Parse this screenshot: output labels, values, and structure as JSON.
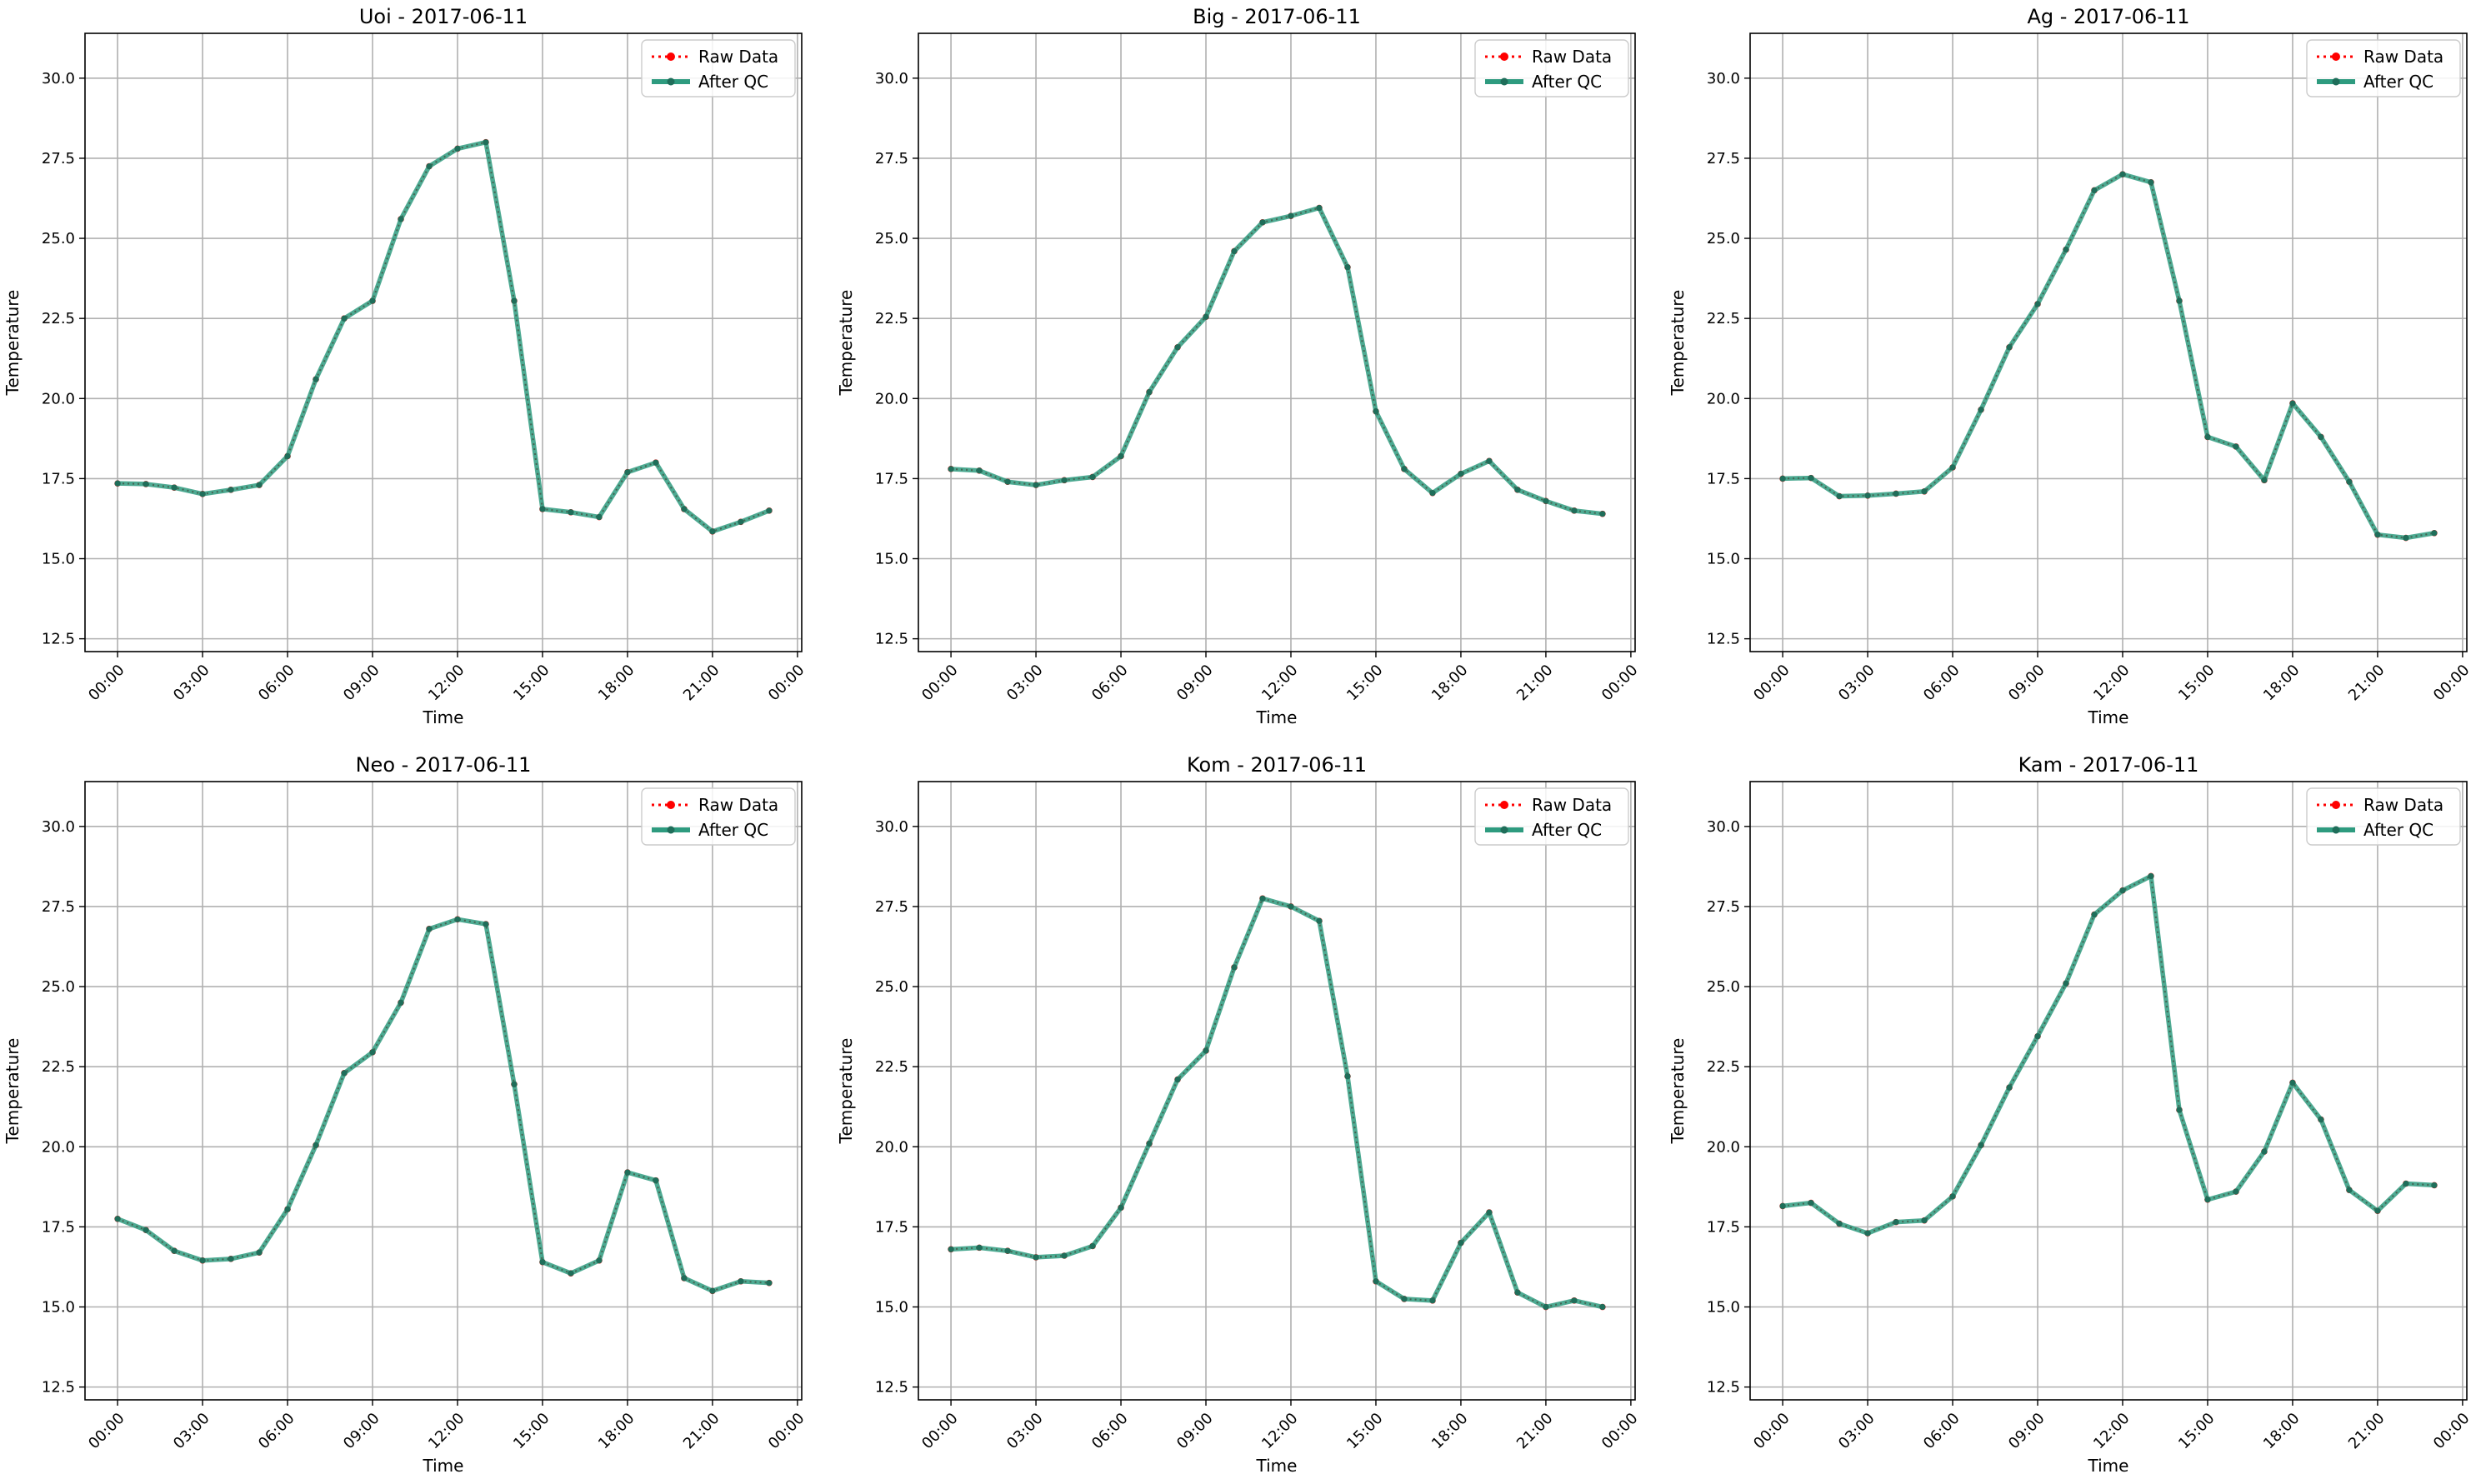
{
  "figure": {
    "legend_placement": "upper right",
    "grid": true,
    "colors": {
      "raw": "#ff0000",
      "after_qc": "#2e9b7f",
      "after_qc_marker": "#1f6e5a",
      "grid": "#b0b0b0"
    }
  },
  "chart_data": [
    {
      "type": "line",
      "title": "Uoi - 2017-06-11",
      "xlabel": "Time",
      "ylabel": "Temperature",
      "xlim": [
        -1.15,
        24.15
      ],
      "ylim": [
        12.1,
        31.4
      ],
      "xticks": [
        0,
        3,
        6,
        9,
        12,
        15,
        18,
        21,
        24
      ],
      "xtick_labels": [
        "00:00",
        "03:00",
        "06:00",
        "09:00",
        "12:00",
        "15:00",
        "18:00",
        "21:00",
        "00:00"
      ],
      "yticks": [
        12.5,
        15.0,
        17.5,
        20.0,
        22.5,
        25.0,
        27.5,
        30.0
      ],
      "ytick_labels": [
        "12.5",
        "15.0",
        "17.5",
        "20.0",
        "22.5",
        "25.0",
        "27.5",
        "30.0"
      ],
      "x": [
        0,
        1,
        2,
        3,
        4,
        5,
        6,
        7,
        8,
        9,
        10,
        11,
        12,
        13,
        14,
        15,
        16,
        17,
        18,
        19,
        20,
        21,
        22,
        23
      ],
      "series": [
        {
          "name": "Raw Data",
          "values": [
            17.35,
            17.33,
            17.22,
            17.02,
            17.15,
            17.3,
            18.2,
            20.6,
            22.5,
            23.05,
            25.6,
            27.25,
            27.8,
            28.0,
            23.05,
            16.55,
            16.45,
            16.3,
            17.7,
            18.0,
            16.55,
            15.85,
            16.15,
            16.5
          ]
        },
        {
          "name": "After QC",
          "values": [
            17.35,
            17.33,
            17.22,
            17.02,
            17.15,
            17.3,
            18.2,
            20.6,
            22.5,
            23.05,
            25.6,
            27.25,
            27.8,
            28.0,
            23.05,
            16.55,
            16.45,
            16.3,
            17.7,
            18.0,
            16.55,
            15.85,
            16.15,
            16.5
          ]
        }
      ]
    },
    {
      "type": "line",
      "title": "Big - 2017-06-11",
      "xlabel": "Time",
      "ylabel": "Temperature",
      "xlim": [
        -1.15,
        24.15
      ],
      "ylim": [
        12.1,
        31.4
      ],
      "xticks": [
        0,
        3,
        6,
        9,
        12,
        15,
        18,
        21,
        24
      ],
      "xtick_labels": [
        "00:00",
        "03:00",
        "06:00",
        "09:00",
        "12:00",
        "15:00",
        "18:00",
        "21:00",
        "00:00"
      ],
      "yticks": [
        12.5,
        15.0,
        17.5,
        20.0,
        22.5,
        25.0,
        27.5,
        30.0
      ],
      "ytick_labels": [
        "12.5",
        "15.0",
        "17.5",
        "20.0",
        "22.5",
        "25.0",
        "27.5",
        "30.0"
      ],
      "x": [
        0,
        1,
        2,
        3,
        4,
        5,
        6,
        7,
        8,
        9,
        10,
        11,
        12,
        13,
        14,
        15,
        16,
        17,
        18,
        19,
        20,
        21,
        22,
        23
      ],
      "series": [
        {
          "name": "Raw Data",
          "values": [
            17.8,
            17.75,
            17.4,
            17.3,
            17.45,
            17.55,
            18.2,
            20.2,
            21.6,
            22.55,
            24.6,
            25.5,
            25.7,
            25.95,
            24.1,
            19.6,
            17.8,
            17.05,
            17.65,
            18.05,
            17.15,
            16.8,
            16.5,
            16.4
          ]
        },
        {
          "name": "After QC",
          "values": [
            17.8,
            17.75,
            17.4,
            17.3,
            17.45,
            17.55,
            18.2,
            20.2,
            21.6,
            22.55,
            24.6,
            25.5,
            25.7,
            25.95,
            24.1,
            19.6,
            17.8,
            17.05,
            17.65,
            18.05,
            17.15,
            16.8,
            16.5,
            16.4
          ]
        }
      ]
    },
    {
      "type": "line",
      "title": "Ag - 2017-06-11",
      "xlabel": "Time",
      "ylabel": "Temperature",
      "xlim": [
        -1.15,
        24.15
      ],
      "ylim": [
        12.1,
        31.4
      ],
      "xticks": [
        0,
        3,
        6,
        9,
        12,
        15,
        18,
        21,
        24
      ],
      "xtick_labels": [
        "00:00",
        "03:00",
        "06:00",
        "09:00",
        "12:00",
        "15:00",
        "18:00",
        "21:00",
        "00:00"
      ],
      "yticks": [
        12.5,
        15.0,
        17.5,
        20.0,
        22.5,
        25.0,
        27.5,
        30.0
      ],
      "ytick_labels": [
        "12.5",
        "15.0",
        "17.5",
        "20.0",
        "22.5",
        "25.0",
        "27.5",
        "30.0"
      ],
      "x": [
        0,
        1,
        2,
        3,
        4,
        5,
        6,
        7,
        8,
        9,
        10,
        11,
        12,
        13,
        14,
        15,
        16,
        17,
        18,
        19,
        20,
        21,
        22,
        23
      ],
      "series": [
        {
          "name": "Raw Data",
          "values": [
            17.5,
            17.52,
            16.95,
            16.97,
            17.03,
            17.1,
            17.85,
            19.65,
            21.6,
            22.95,
            24.65,
            26.5,
            27.0,
            26.75,
            23.05,
            18.8,
            18.5,
            17.45,
            19.85,
            18.8,
            17.4,
            15.75,
            15.65,
            15.8
          ]
        },
        {
          "name": "After QC",
          "values": [
            17.5,
            17.52,
            16.95,
            16.97,
            17.03,
            17.1,
            17.85,
            19.65,
            21.6,
            22.95,
            24.65,
            26.5,
            27.0,
            26.75,
            23.05,
            18.8,
            18.5,
            17.45,
            19.85,
            18.8,
            17.4,
            15.75,
            15.65,
            15.8
          ]
        }
      ]
    },
    {
      "type": "line",
      "title": "Neo - 2017-06-11",
      "xlabel": "Time",
      "ylabel": "Temperature",
      "xlim": [
        -1.15,
        24.15
      ],
      "ylim": [
        12.1,
        31.4
      ],
      "xticks": [
        0,
        3,
        6,
        9,
        12,
        15,
        18,
        21,
        24
      ],
      "xtick_labels": [
        "00:00",
        "03:00",
        "06:00",
        "09:00",
        "12:00",
        "15:00",
        "18:00",
        "21:00",
        "00:00"
      ],
      "yticks": [
        12.5,
        15.0,
        17.5,
        20.0,
        22.5,
        25.0,
        27.5,
        30.0
      ],
      "ytick_labels": [
        "12.5",
        "15.0",
        "17.5",
        "20.0",
        "22.5",
        "25.0",
        "27.5",
        "30.0"
      ],
      "x": [
        0,
        1,
        2,
        3,
        4,
        5,
        6,
        7,
        8,
        9,
        10,
        11,
        12,
        13,
        14,
        15,
        16,
        17,
        18,
        19,
        20,
        21,
        22,
        23
      ],
      "series": [
        {
          "name": "Raw Data",
          "values": [
            17.75,
            17.4,
            16.75,
            16.45,
            16.5,
            16.7,
            18.05,
            20.05,
            22.3,
            22.95,
            24.5,
            26.8,
            27.1,
            26.95,
            21.95,
            16.4,
            16.05,
            16.45,
            19.2,
            18.95,
            15.9,
            15.5,
            15.8,
            15.75
          ]
        },
        {
          "name": "After QC",
          "values": [
            17.75,
            17.4,
            16.75,
            16.45,
            16.5,
            16.7,
            18.05,
            20.05,
            22.3,
            22.95,
            24.5,
            26.8,
            27.1,
            26.95,
            21.95,
            16.4,
            16.05,
            16.45,
            19.2,
            18.95,
            15.9,
            15.5,
            15.8,
            15.75
          ]
        }
      ]
    },
    {
      "type": "line",
      "title": "Kom - 2017-06-11",
      "xlabel": "Time",
      "ylabel": "Temperature",
      "xlim": [
        -1.15,
        24.15
      ],
      "ylim": [
        12.1,
        31.4
      ],
      "xticks": [
        0,
        3,
        6,
        9,
        12,
        15,
        18,
        21,
        24
      ],
      "xtick_labels": [
        "00:00",
        "03:00",
        "06:00",
        "09:00",
        "12:00",
        "15:00",
        "18:00",
        "21:00",
        "00:00"
      ],
      "yticks": [
        12.5,
        15.0,
        17.5,
        20.0,
        22.5,
        25.0,
        27.5,
        30.0
      ],
      "ytick_labels": [
        "12.5",
        "15.0",
        "17.5",
        "20.0",
        "22.5",
        "25.0",
        "27.5",
        "30.0"
      ],
      "x": [
        0,
        1,
        2,
        3,
        4,
        5,
        6,
        7,
        8,
        9,
        10,
        11,
        12,
        13,
        14,
        15,
        16,
        17,
        18,
        19,
        20,
        21,
        22,
        23
      ],
      "series": [
        {
          "name": "Raw Data",
          "values": [
            16.8,
            16.85,
            16.75,
            16.55,
            16.6,
            16.9,
            18.1,
            20.1,
            22.1,
            23.0,
            25.6,
            27.75,
            27.5,
            27.05,
            22.2,
            15.8,
            15.25,
            15.2,
            17.0,
            17.95,
            15.45,
            15.0,
            15.2,
            15.0
          ]
        },
        {
          "name": "After QC",
          "values": [
            16.8,
            16.85,
            16.75,
            16.55,
            16.6,
            16.9,
            18.1,
            20.1,
            22.1,
            23.0,
            25.6,
            27.75,
            27.5,
            27.05,
            22.2,
            15.8,
            15.25,
            15.2,
            17.0,
            17.95,
            15.45,
            15.0,
            15.2,
            15.0
          ]
        }
      ]
    },
    {
      "type": "line",
      "title": "Kam - 2017-06-11",
      "xlabel": "Time",
      "ylabel": "Temperature",
      "xlim": [
        -1.15,
        24.15
      ],
      "ylim": [
        12.1,
        31.4
      ],
      "xticks": [
        0,
        3,
        6,
        9,
        12,
        15,
        18,
        21,
        24
      ],
      "xtick_labels": [
        "00:00",
        "03:00",
        "06:00",
        "09:00",
        "12:00",
        "15:00",
        "18:00",
        "21:00",
        "00:00"
      ],
      "yticks": [
        12.5,
        15.0,
        17.5,
        20.0,
        22.5,
        25.0,
        27.5,
        30.0
      ],
      "ytick_labels": [
        "12.5",
        "15.0",
        "17.5",
        "20.0",
        "22.5",
        "25.0",
        "27.5",
        "30.0"
      ],
      "x": [
        0,
        1,
        2,
        3,
        4,
        5,
        6,
        7,
        8,
        9,
        10,
        11,
        12,
        13,
        14,
        15,
        16,
        17,
        18,
        19,
        20,
        21,
        22,
        23
      ],
      "series": [
        {
          "name": "Raw Data",
          "values": [
            18.15,
            18.25,
            17.6,
            17.3,
            17.65,
            17.7,
            18.45,
            20.05,
            21.85,
            23.45,
            25.1,
            27.25,
            28.0,
            28.45,
            21.15,
            18.35,
            18.6,
            19.85,
            22.0,
            20.85,
            18.65,
            18.0,
            18.85,
            18.8
          ]
        },
        {
          "name": "After QC",
          "values": [
            18.15,
            18.25,
            17.6,
            17.3,
            17.65,
            17.7,
            18.45,
            20.05,
            21.85,
            23.45,
            25.1,
            27.25,
            28.0,
            28.45,
            21.15,
            18.35,
            18.6,
            19.85,
            22.0,
            20.85,
            18.65,
            18.0,
            18.85,
            18.8
          ]
        }
      ]
    }
  ]
}
